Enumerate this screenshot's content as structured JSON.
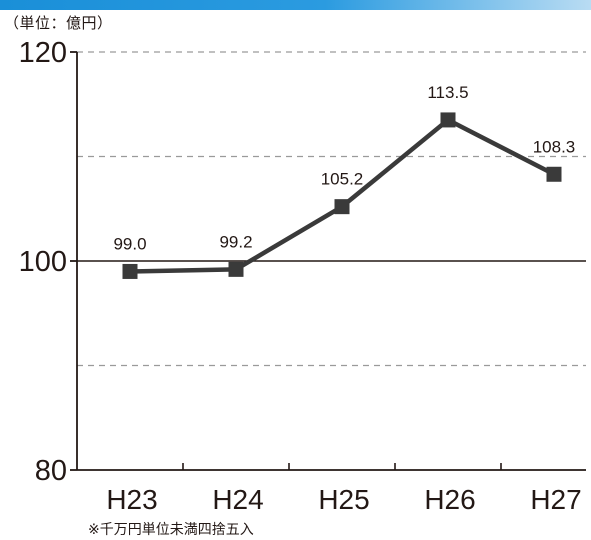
{
  "header": {
    "unit_label": "（単位：億円）",
    "accent_color": "#1a8fd8"
  },
  "footnote": "※千万円単位未満四捨五入",
  "chart_data": {
    "type": "line",
    "title": "",
    "xlabel": "",
    "ylabel": "",
    "categories": [
      "H23",
      "H24",
      "H25",
      "H26",
      "H27"
    ],
    "values": [
      99.0,
      99.2,
      105.2,
      113.5,
      108.3
    ],
    "data_labels": [
      "99.0",
      "99.2",
      "105.2",
      "113.5",
      "108.3"
    ],
    "ylim": [
      80,
      120
    ],
    "yticks": [
      80,
      100,
      120
    ],
    "dashed_gridlines": [
      90,
      110,
      120
    ],
    "solid_gridline": 100,
    "line_color": "#3a3a3a",
    "marker": "square"
  }
}
